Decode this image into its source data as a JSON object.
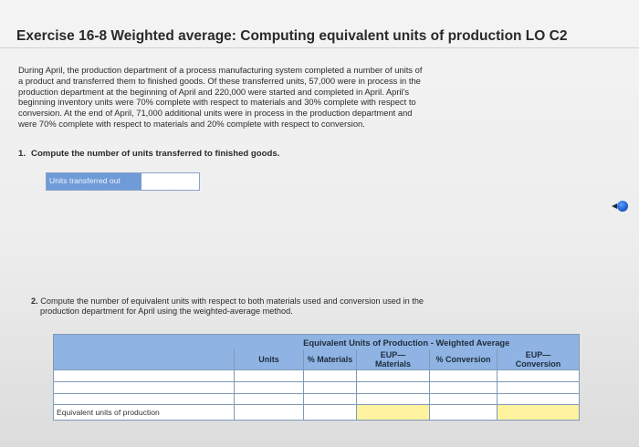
{
  "header": {
    "title": "Exercise 16-8 Weighted average: Computing equivalent units of production LO C2"
  },
  "intro": {
    "lines": [
      "During April, the production department of a process manufacturing system completed a number of units of",
      "a product and transferred them to finished goods. Of these transferred units, 57,000 were in process in the",
      "production department at the beginning of April and 220,000 were started and completed in April. April's",
      "beginning inventory units were 70% complete with respect to materials and 30% complete with respect to",
      "conversion. At the end of April, 71,000 additional units were in process in the production department and",
      "were 70% complete with respect to materials and 20% complete with respect to conversion."
    ]
  },
  "q1": {
    "number": "1.",
    "text": "Compute the number of units transferred to finished goods.",
    "field_label": "Units transferred out",
    "field_value": ""
  },
  "q2": {
    "number": "2.",
    "line1": "Compute the number of equivalent units with respect to both materials used and conversion used in the",
    "line2": "production department for April using the weighted-average method."
  },
  "table": {
    "title": "Equivalent Units of Production - Weighted Average",
    "columns": [
      "Units",
      "% Materials",
      "EUP— Materials",
      "% Conversion",
      "EUP— Conversion"
    ],
    "col_line1": [
      "Units",
      "% Materials",
      "EUP—",
      "% Conversion",
      "EUP—"
    ],
    "col_line2": [
      "",
      "",
      "Materials",
      "",
      "Conversion"
    ],
    "total_label": "Equivalent units of production"
  },
  "colors": {
    "header_blue": "#8fb4e3",
    "label_blue": "#6f9bd8",
    "answer_yellow": "#fff3a0"
  }
}
